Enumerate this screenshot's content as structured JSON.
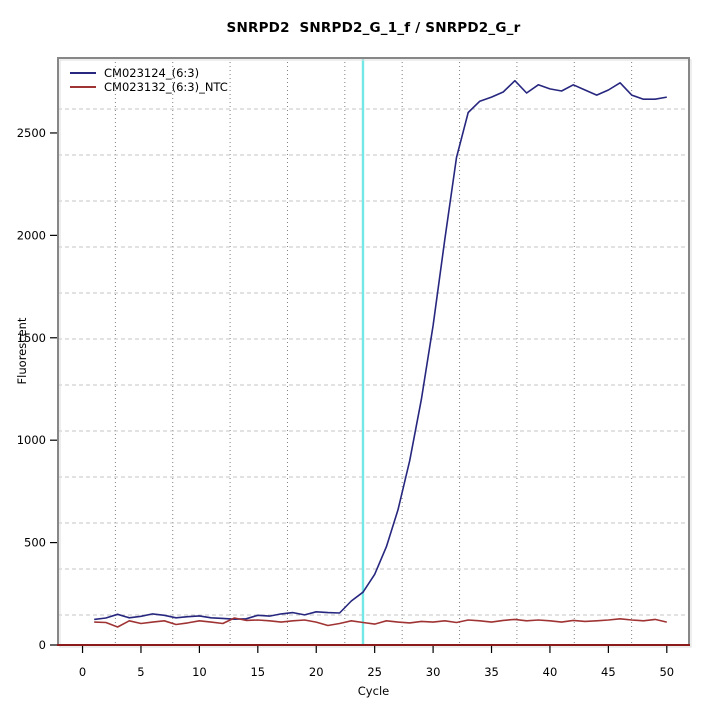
{
  "title": "SNRPD2  SNRPD2_G_1_f / SNRPD2_G_r",
  "axes": {
    "x": {
      "label": "Cycle",
      "ticks": [
        0,
        5,
        10,
        15,
        20,
        25,
        30,
        35,
        40,
        45,
        50
      ]
    },
    "y": {
      "label": "Fluorescent",
      "ticks": [
        0,
        500,
        1000,
        1500,
        2000,
        2500
      ]
    }
  },
  "legend": {
    "items": [
      {
        "label": "CM023124_(6:3)",
        "color": "#27277f"
      },
      {
        "label": "CM023132_(6:3)_NTC",
        "color": "#a03434"
      }
    ]
  },
  "colors": {
    "frame": "#878787",
    "frame_highlight": "#dcdcdc",
    "grid_vertical": "#808080",
    "grid_horizontal": "#c4c4c4",
    "threshold": "#74e7e7",
    "zero_line": "#8b1a1a",
    "tick": "#000000"
  },
  "chart_data": {
    "type": "line",
    "title": "SNRPD2  SNRPD2_G_1_f / SNRPD2_G_r",
    "xlabel": "Cycle",
    "ylabel": "Fluorescent",
    "xlim": [
      -2.1,
      51.9
    ],
    "ylim": [
      0,
      2866
    ],
    "grid": true,
    "legend_position": "top-left",
    "cycles": [
      1,
      2,
      3,
      4,
      5,
      6,
      7,
      8,
      9,
      10,
      11,
      12,
      13,
      14,
      15,
      16,
      17,
      18,
      19,
      20,
      21,
      22,
      23,
      24,
      25,
      26,
      27,
      28,
      29,
      30,
      31,
      32,
      33,
      34,
      35,
      36,
      37,
      38,
      39,
      40,
      41,
      42,
      43,
      44,
      45,
      46,
      47,
      48,
      49,
      50
    ],
    "series": [
      {
        "name": "CM023124_(6:3)",
        "color": "#27277f",
        "values": [
          125,
          132,
          150,
          133,
          140,
          152,
          145,
          133,
          138,
          142,
          133,
          130,
          126,
          128,
          145,
          141,
          152,
          158,
          147,
          162,
          158,
          156,
          215,
          258,
          345,
          480,
          660,
          900,
          1200,
          1560,
          1980,
          2380,
          2600,
          2655,
          2675,
          2700,
          2755,
          2695,
          2735,
          2715,
          2705,
          2735,
          2710,
          2685,
          2710,
          2745,
          2685,
          2665,
          2665,
          2675
        ]
      },
      {
        "name": "CM023132_(6:3)_NTC",
        "color": "#a03434",
        "values": [
          112,
          110,
          88,
          118,
          105,
          112,
          118,
          100,
          108,
          118,
          112,
          105,
          132,
          120,
          122,
          118,
          112,
          118,
          122,
          112,
          95,
          105,
          118,
          110,
          102,
          118,
          112,
          108,
          115,
          112,
          118,
          110,
          122,
          118,
          112,
          120,
          125,
          118,
          122,
          118,
          112,
          120,
          115,
          118,
          122,
          128,
          122,
          118,
          125,
          112
        ]
      }
    ],
    "threshold_line": {
      "x": 24,
      "color": "#74e7e7"
    },
    "zero_line": {
      "y": 0,
      "color": "#8b1a1a"
    }
  }
}
